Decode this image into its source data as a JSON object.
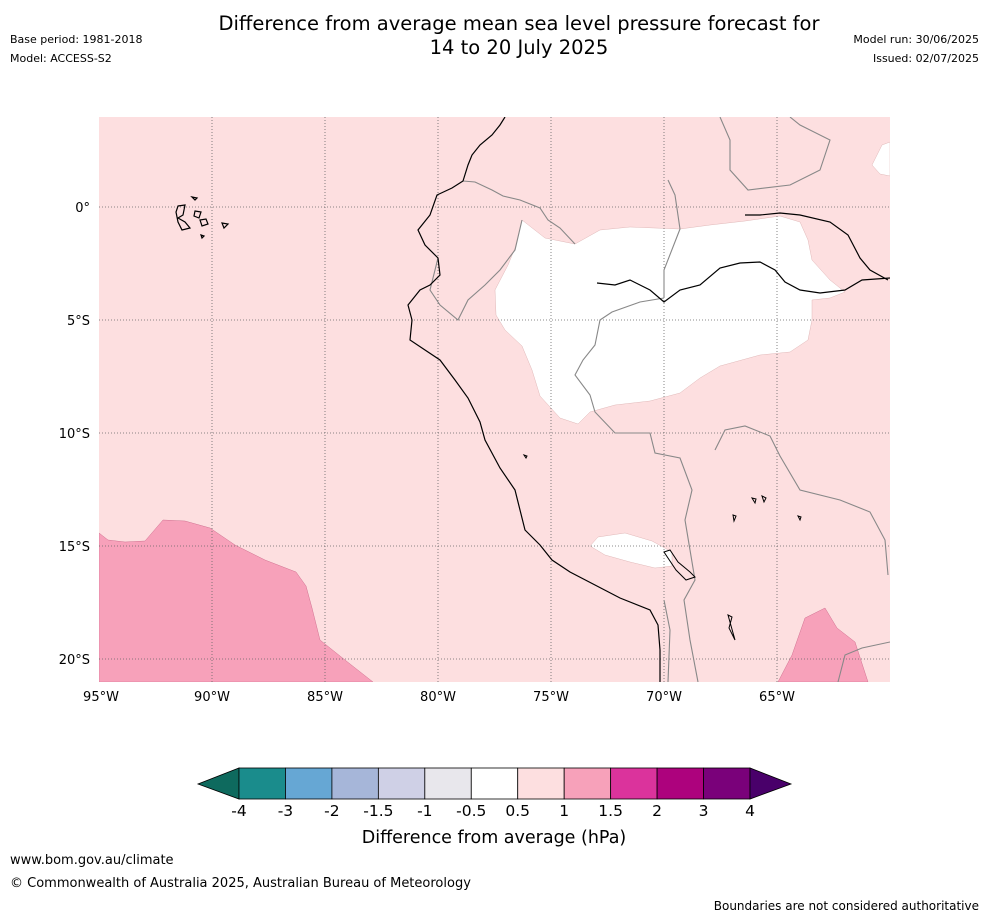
{
  "title": {
    "line1": "Difference from average mean sea level pressure forecast for",
    "line2": "14 to 20 July 2025"
  },
  "meta": {
    "base_period": "Base period: 1981-2018",
    "model": "Model: ACCESS-S2",
    "model_run": "Model run: 30/06/2025",
    "issued": "Issued: 02/07/2025"
  },
  "map": {
    "lon_range": [
      -95,
      -60
    ],
    "lat_range": [
      -21,
      4
    ],
    "lon_ticks": [
      {
        "value": -95,
        "label": "95°W"
      },
      {
        "value": -90,
        "label": "90°W"
      },
      {
        "value": -85,
        "label": "85°W"
      },
      {
        "value": -80,
        "label": "80°W"
      },
      {
        "value": -75,
        "label": "75°W"
      },
      {
        "value": -70,
        "label": "70°W"
      },
      {
        "value": -65,
        "label": "65°W"
      }
    ],
    "lat_ticks": [
      {
        "value": 0,
        "label": "0°"
      },
      {
        "value": -5,
        "label": "5°S"
      },
      {
        "value": -10,
        "label": "10°S"
      },
      {
        "value": -15,
        "label": "15°S"
      },
      {
        "value": -20,
        "label": "20°S"
      }
    ],
    "gridlines": true,
    "background_class": "0.5 to 1",
    "regions": [
      {
        "class": "-0.5 to 0.5",
        "area": "Amazon basin, northern Peru and western Brazil"
      },
      {
        "class": "-0.5 to 0.5",
        "area": "small patch near Lake Titicaca"
      },
      {
        "class": "1 to 1.5",
        "area": "south-west Pacific Ocean"
      },
      {
        "class": "1 to 1.5",
        "area": "northern Argentina / Paraguay border"
      }
    ]
  },
  "colorbar": {
    "labels": [
      "-4",
      "-3",
      "-2",
      "-1.5",
      "-1",
      "-0.5",
      "0.5",
      "1",
      "1.5",
      "2",
      "3",
      "4"
    ],
    "colors": [
      "#1a8c8c",
      "#66a7d4",
      "#a6b6d9",
      "#cfd0e6",
      "#e8e7ec",
      "#ffffff",
      "#fddfe0",
      "#f7a1ba",
      "#db339c",
      "#ad027d",
      "#7a017a"
    ],
    "low_extend_color": "#0e6a5e",
    "high_extend_color": "#49006a",
    "label": "Difference from average (hPa)"
  },
  "footer": {
    "url": "www.bom.gov.au/climate",
    "copyright": "© Commonwealth of Australia 2025, Australian Bureau of Meteorology",
    "disclaimer": "Boundaries are not considered authoritative"
  }
}
